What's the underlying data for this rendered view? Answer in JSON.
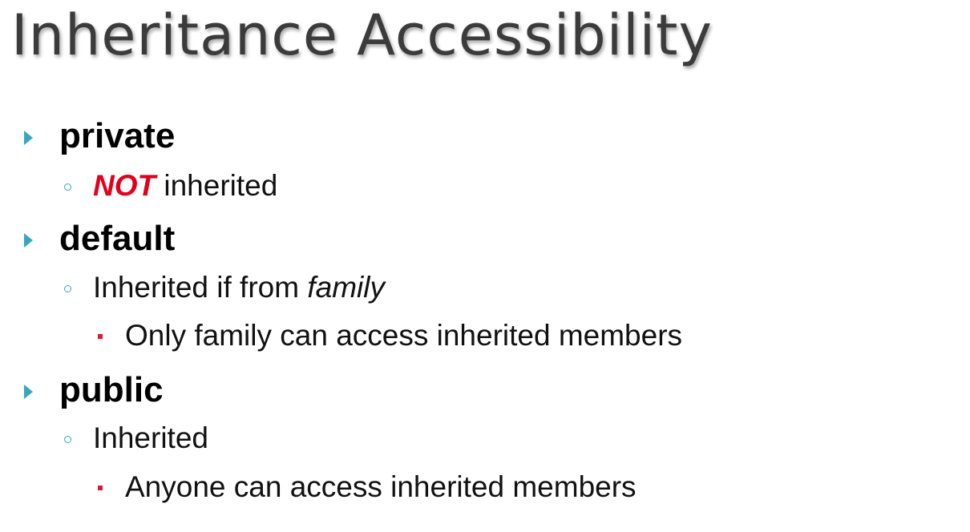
{
  "slide": {
    "title": "Inheritance Accessibility",
    "items": [
      {
        "heading": "private",
        "sub": [
          {
            "emphasis": "NOT",
            "text": " inherited"
          }
        ]
      },
      {
        "heading": "default",
        "sub": [
          {
            "text": "Inherited if from ",
            "italic": "family"
          }
        ],
        "detail": "Only family can access inherited members"
      },
      {
        "heading": "public",
        "sub": [
          {
            "text": "Inherited"
          }
        ],
        "detail": "Anyone can access inherited members"
      }
    ],
    "colors": {
      "bullet_primary": "#3aa6b9",
      "bullet_secondary": "#d21f35",
      "emphasis": "#e3001b",
      "title": "#3b3b3b"
    },
    "icons": {
      "level1": "triangle-bullet-icon",
      "level2": "circle-bullet-icon",
      "level3": "square-bullet-icon"
    }
  }
}
